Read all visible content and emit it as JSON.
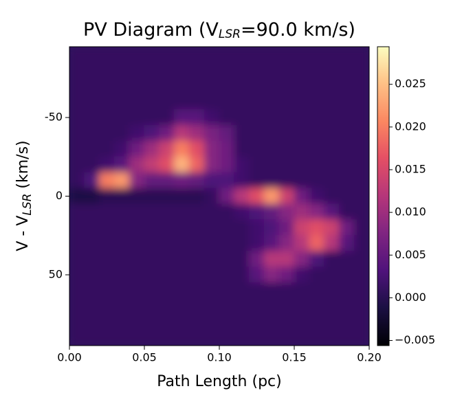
{
  "chart_data": {
    "type": "heatmap",
    "title": [
      "PV Diagram (V",
      "LSR",
      "=90.0 km/s)"
    ],
    "x_label": "Path Length (pc)",
    "y_label": [
      "V - V",
      "LSR",
      " (km/s)"
    ],
    "x": [
      0.005,
      0.015,
      0.025,
      0.035,
      0.045,
      0.055,
      0.065,
      0.075,
      0.085,
      0.095,
      0.105,
      0.115,
      0.125,
      0.135,
      0.145,
      0.155,
      0.165,
      0.175,
      0.185,
      0.195
    ],
    "y": [
      -90,
      -80,
      -70,
      -60,
      -50,
      -40,
      -30,
      -20,
      -10,
      0,
      10,
      20,
      30,
      40,
      50,
      60,
      70,
      80,
      90
    ],
    "z": [
      [
        0.001,
        0.001,
        0.001,
        0.001,
        0.001,
        0.001,
        0.001,
        0.001,
        0.001,
        0.001,
        0.001,
        0.001,
        0.001,
        0.001,
        0.001,
        0.001,
        0.001,
        0.001,
        0.001,
        0.001
      ],
      [
        0.001,
        0.001,
        0.001,
        0.001,
        0.001,
        0.001,
        0.001,
        0.001,
        0.001,
        0.001,
        0.001,
        0.001,
        0.001,
        0.001,
        0.001,
        0.001,
        0.001,
        0.001,
        0.001,
        0.001
      ],
      [
        0.001,
        0.001,
        0.001,
        0.001,
        0.001,
        0.001,
        0.001,
        0.001,
        0.001,
        0.001,
        0.001,
        0.001,
        0.001,
        0.001,
        0.001,
        0.001,
        0.001,
        0.001,
        0.001,
        0.001
      ],
      [
        0.001,
        0.001,
        0.001,
        0.001,
        0.001,
        0.001,
        0.001,
        0.001,
        0.001,
        0.001,
        0.001,
        0.001,
        0.001,
        0.001,
        0.001,
        0.001,
        0.001,
        0.001,
        0.001,
        0.001
      ],
      [
        0.001,
        0.001,
        0.001,
        0.001,
        0.001,
        0.001,
        0.001,
        0.004,
        0.004,
        0.002,
        0.001,
        0.001,
        0.001,
        0.001,
        0.001,
        0.001,
        0.001,
        0.001,
        0.001,
        0.001
      ],
      [
        0.001,
        0.001,
        0.001,
        0.001,
        0.002,
        0.003,
        0.006,
        0.012,
        0.01,
        0.007,
        0.005,
        0.001,
        0.001,
        0.001,
        0.001,
        0.001,
        0.001,
        0.001,
        0.001,
        0.001
      ],
      [
        0.001,
        0.001,
        0.001,
        0.002,
        0.006,
        0.01,
        0.014,
        0.02,
        0.016,
        0.008,
        0.006,
        0.001,
        0.001,
        0.001,
        0.001,
        0.001,
        0.001,
        0.001,
        0.001,
        0.001
      ],
      [
        0.001,
        0.001,
        0.002,
        0.004,
        0.01,
        0.013,
        0.016,
        0.024,
        0.018,
        0.008,
        0.006,
        0.002,
        0.001,
        0.001,
        0.001,
        0.001,
        0.001,
        0.001,
        0.001,
        0.001
      ],
      [
        0.001,
        0.003,
        0.02,
        0.022,
        0.008,
        0.005,
        0.005,
        0.006,
        0.005,
        0.003,
        0.003,
        0.002,
        0.001,
        0.001,
        0.001,
        0.001,
        0.001,
        0.001,
        0.001,
        0.001
      ],
      [
        -0.001,
        -0.001,
        0.0,
        0.0,
        0.0,
        0.0,
        0.0,
        0.0,
        0.0,
        0.001,
        0.006,
        0.012,
        0.016,
        0.022,
        0.014,
        0.006,
        0.002,
        0.001,
        0.001,
        0.001
      ],
      [
        0.001,
        0.001,
        0.001,
        0.001,
        0.001,
        0.001,
        0.001,
        0.001,
        0.001,
        0.001,
        0.001,
        0.002,
        0.003,
        0.005,
        0.008,
        0.01,
        0.008,
        0.004,
        0.001,
        0.001
      ],
      [
        0.001,
        0.001,
        0.001,
        0.001,
        0.001,
        0.001,
        0.001,
        0.001,
        0.001,
        0.001,
        0.001,
        0.001,
        0.002,
        0.003,
        0.006,
        0.014,
        0.016,
        0.014,
        0.006,
        0.001
      ],
      [
        0.001,
        0.001,
        0.001,
        0.001,
        0.001,
        0.001,
        0.001,
        0.001,
        0.001,
        0.001,
        0.001,
        0.001,
        0.002,
        0.004,
        0.008,
        0.012,
        0.018,
        0.012,
        0.004,
        0.001
      ],
      [
        0.001,
        0.001,
        0.001,
        0.001,
        0.001,
        0.001,
        0.001,
        0.001,
        0.001,
        0.001,
        0.001,
        0.001,
        0.006,
        0.012,
        0.012,
        0.008,
        0.003,
        0.001,
        0.001,
        0.001
      ],
      [
        0.001,
        0.001,
        0.001,
        0.001,
        0.001,
        0.001,
        0.001,
        0.001,
        0.001,
        0.001,
        0.001,
        0.001,
        0.004,
        0.008,
        0.006,
        0.002,
        0.001,
        0.001,
        0.001,
        0.001
      ],
      [
        0.001,
        0.001,
        0.001,
        0.001,
        0.001,
        0.001,
        0.001,
        0.001,
        0.001,
        0.001,
        0.001,
        0.001,
        0.001,
        0.001,
        0.001,
        0.001,
        0.001,
        0.001,
        0.001,
        0.001
      ],
      [
        0.001,
        0.001,
        0.001,
        0.001,
        0.001,
        0.001,
        0.001,
        0.001,
        0.001,
        0.001,
        0.001,
        0.001,
        0.001,
        0.001,
        0.001,
        0.001,
        0.001,
        0.001,
        0.001,
        0.001
      ],
      [
        0.001,
        0.001,
        0.001,
        0.001,
        0.001,
        0.001,
        0.001,
        0.001,
        0.001,
        0.001,
        0.001,
        0.001,
        0.001,
        0.001,
        0.001,
        0.001,
        0.001,
        0.001,
        0.001,
        0.001
      ],
      [
        0.001,
        0.001,
        0.001,
        0.001,
        0.001,
        0.001,
        0.001,
        0.001,
        0.001,
        0.001,
        0.001,
        0.001,
        0.001,
        0.001,
        0.001,
        0.001,
        0.001,
        0.001,
        0.001,
        0.001
      ]
    ],
    "xlim": [
      0,
      0.2
    ],
    "xticks": [
      {
        "value": 0,
        "label": "0.00"
      },
      0.05,
      {
        "value": 0.1,
        "label": "0.10"
      },
      0.15,
      {
        "value": 0.2,
        "label": "0.20"
      }
    ],
    "ylim": [
      95,
      -95
    ],
    "yticks": [
      -50,
      0,
      50
    ],
    "colormap": "magma",
    "clim": [
      -0.0056,
      0.0294
    ],
    "cticks": [
      {
        "value": -0.005,
        "label": "−0.005"
      },
      {
        "value": 0,
        "label": "0.000"
      },
      0.005,
      {
        "value": 0.01,
        "label": "0.010"
      },
      0.015,
      {
        "value": 0.02,
        "label": "0.020"
      },
      0.025
    ]
  }
}
